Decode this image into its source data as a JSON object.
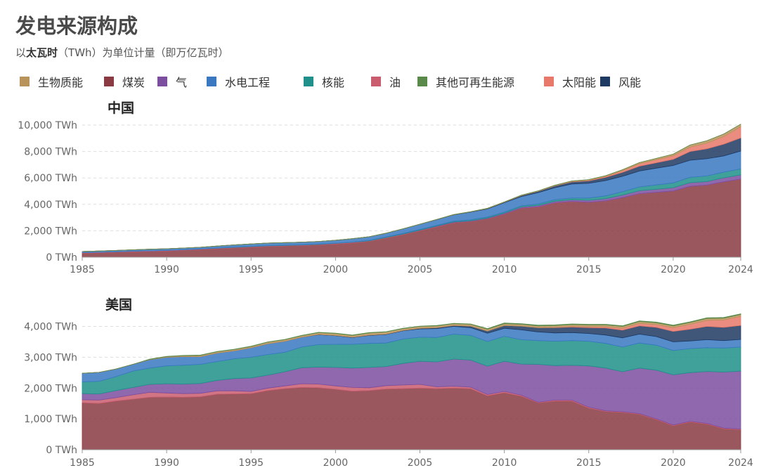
{
  "title": "发电来源构成",
  "subtitle_prefix": "以",
  "subtitle_bold": "太瓦时",
  "subtitle_rest": "（TWh）为单位计量（即万亿瓦时）",
  "legend": [
    {
      "key": "biomass",
      "label": "生物质能",
      "color": "#b8935a"
    },
    {
      "key": "coal",
      "label": "煤炭",
      "color": "#8a3a42"
    },
    {
      "key": "gas",
      "label": "气",
      "color": "#7b4ea0"
    },
    {
      "key": "hydro",
      "label": "水电工程",
      "color": "#3a78c2"
    },
    {
      "key": "nuclear",
      "label": "核能",
      "color": "#1f918a"
    },
    {
      "key": "oil",
      "label": "油",
      "color": "#c95d6f"
    },
    {
      "key": "other",
      "label": "其他可再生能源",
      "color": "#5a8a4a"
    },
    {
      "key": "solar",
      "label": "太阳能",
      "color": "#e8786a"
    },
    {
      "key": "wind",
      "label": "风能",
      "color": "#1e3a63"
    }
  ],
  "chart_data": [
    {
      "type": "area",
      "stacked": true,
      "title": "中国",
      "x": [
        1985,
        1986,
        1987,
        1988,
        1989,
        1990,
        1991,
        1992,
        1993,
        1994,
        1995,
        1996,
        1997,
        1998,
        1999,
        2000,
        2001,
        2002,
        2003,
        2004,
        2005,
        2006,
        2007,
        2008,
        2009,
        2010,
        2011,
        2012,
        2013,
        2014,
        2015,
        2016,
        2017,
        2018,
        2019,
        2020,
        2021,
        2022,
        2023,
        2024
      ],
      "ylim": [
        0,
        10000
      ],
      "yticks": [
        0,
        2000,
        4000,
        6000,
        8000,
        10000
      ],
      "ytick_labels": [
        "0 TWh",
        "2,000 TWh",
        "4,000 TWh",
        "6,000 TWh",
        "8,000 TWh",
        "10,000 TWh"
      ],
      "xticks": [
        1985,
        1990,
        1995,
        2000,
        2005,
        2010,
        2015,
        2020,
        2024
      ],
      "series": [
        {
          "name": "煤炭",
          "key": "coal",
          "values": [
            300,
            330,
            370,
            410,
            440,
            470,
            520,
            580,
            640,
            700,
            760,
            820,
            850,
            880,
            930,
            1000,
            1080,
            1200,
            1450,
            1700,
            2000,
            2300,
            2600,
            2700,
            2900,
            3250,
            3700,
            3800,
            4100,
            4200,
            4150,
            4250,
            4500,
            4800,
            4900,
            5000,
            5350,
            5450,
            5700,
            5900
          ]
        },
        {
          "name": "油",
          "key": "oil",
          "values": [
            40,
            40,
            40,
            40,
            40,
            40,
            40,
            40,
            40,
            40,
            40,
            40,
            40,
            40,
            40,
            40,
            40,
            40,
            40,
            40,
            30,
            30,
            30,
            20,
            20,
            20,
            20,
            20,
            20,
            20,
            10,
            10,
            10,
            10,
            10,
            10,
            10,
            10,
            10,
            10
          ]
        },
        {
          "name": "气",
          "key": "gas",
          "values": [
            0,
            0,
            0,
            0,
            0,
            0,
            0,
            0,
            0,
            0,
            0,
            0,
            0,
            0,
            0,
            0,
            0,
            0,
            0,
            10,
            20,
            30,
            40,
            40,
            50,
            70,
            90,
            100,
            120,
            130,
            150,
            170,
            200,
            220,
            230,
            250,
            280,
            270,
            300,
            320
          ]
        },
        {
          "name": "核能",
          "key": "nuclear",
          "values": [
            0,
            0,
            0,
            0,
            0,
            0,
            0,
            0,
            10,
            20,
            20,
            20,
            20,
            20,
            20,
            20,
            20,
            30,
            40,
            50,
            50,
            50,
            60,
            70,
            70,
            70,
            80,
            100,
            110,
            130,
            170,
            210,
            250,
            290,
            330,
            360,
            400,
            420,
            430,
            450
          ]
        },
        {
          "name": "水电工程",
          "key": "hydro",
          "values": [
            90,
            100,
            100,
            110,
            120,
            130,
            130,
            130,
            150,
            170,
            180,
            190,
            190,
            200,
            200,
            220,
            260,
            280,
            290,
            350,
            400,
            430,
            480,
            580,
            610,
            710,
            700,
            870,
            910,
            1060,
            1110,
            1160,
            1160,
            1200,
            1270,
            1320,
            1300,
            1300,
            1230,
            1350
          ]
        },
        {
          "name": "风能",
          "key": "wind",
          "values": [
            0,
            0,
            0,
            0,
            0,
            0,
            0,
            0,
            0,
            0,
            0,
            0,
            0,
            0,
            0,
            0,
            0,
            0,
            0,
            0,
            0,
            10,
            10,
            20,
            30,
            40,
            70,
            100,
            140,
            160,
            190,
            240,
            300,
            370,
            410,
            470,
            660,
            760,
            890,
            1000
          ]
        },
        {
          "name": "太阳能",
          "key": "solar",
          "values": [
            0,
            0,
            0,
            0,
            0,
            0,
            0,
            0,
            0,
            0,
            0,
            0,
            0,
            0,
            0,
            0,
            0,
            0,
            0,
            0,
            0,
            0,
            0,
            0,
            0,
            0,
            0,
            0,
            10,
            30,
            40,
            70,
            120,
            180,
            220,
            260,
            330,
            430,
            580,
            840
          ]
        },
        {
          "name": "生物质能",
          "key": "biomass",
          "values": [
            0,
            0,
            0,
            0,
            0,
            0,
            0,
            0,
            0,
            0,
            0,
            0,
            0,
            0,
            0,
            0,
            0,
            0,
            0,
            0,
            0,
            10,
            10,
            10,
            20,
            20,
            30,
            30,
            40,
            40,
            50,
            60,
            80,
            90,
            110,
            130,
            160,
            180,
            190,
            200
          ]
        },
        {
          "name": "其他可再生能源",
          "key": "other",
          "values": [
            0,
            0,
            0,
            0,
            0,
            0,
            0,
            0,
            0,
            0,
            0,
            0,
            0,
            0,
            0,
            0,
            0,
            0,
            0,
            0,
            0,
            0,
            0,
            0,
            0,
            0,
            0,
            0,
            0,
            0,
            0,
            0,
            0,
            0,
            0,
            0,
            0,
            0,
            0,
            0
          ]
        }
      ]
    },
    {
      "type": "area",
      "stacked": true,
      "title": "美国",
      "x": [
        1985,
        1986,
        1987,
        1988,
        1989,
        1990,
        1991,
        1992,
        1993,
        1994,
        1995,
        1996,
        1997,
        1998,
        1999,
        2000,
        2001,
        2002,
        2003,
        2004,
        2005,
        2006,
        2007,
        2008,
        2009,
        2010,
        2011,
        2012,
        2013,
        2014,
        2015,
        2016,
        2017,
        2018,
        2019,
        2020,
        2021,
        2022,
        2023,
        2024
      ],
      "ylim": [
        0,
        4400
      ],
      "yticks": [
        0,
        1000,
        2000,
        3000,
        4000
      ],
      "ytick_labels": [
        "0 TWh",
        "1,000 TWh",
        "2,000 TWh",
        "3,000 TWh",
        "4,000 TWh"
      ],
      "xticks": [
        1985,
        1990,
        1995,
        2000,
        2005,
        2010,
        2015,
        2020,
        2024
      ],
      "series": [
        {
          "name": "煤炭",
          "key": "coal",
          "values": [
            1520,
            1500,
            1580,
            1640,
            1700,
            1710,
            1700,
            1720,
            1800,
            1810,
            1820,
            1920,
            1980,
            2020,
            2010,
            1960,
            1900,
            1920,
            1970,
            1980,
            2000,
            1980,
            2000,
            1980,
            1750,
            1850,
            1740,
            1520,
            1580,
            1580,
            1350,
            1240,
            1210,
            1150,
            980,
            780,
            900,
            830,
            680,
            650
          ]
        },
        {
          "name": "油",
          "key": "oil",
          "values": [
            100,
            110,
            110,
            140,
            160,
            130,
            120,
            110,
            110,
            100,
            70,
            80,
            90,
            120,
            120,
            110,
            120,
            90,
            110,
            120,
            120,
            60,
            60,
            50,
            40,
            40,
            30,
            20,
            30,
            30,
            30,
            20,
            20,
            20,
            20,
            20,
            20,
            20,
            20,
            20
          ]
        },
        {
          "name": "气",
          "key": "gas",
          "values": [
            200,
            200,
            230,
            240,
            260,
            300,
            310,
            320,
            340,
            400,
            440,
            420,
            460,
            520,
            550,
            600,
            630,
            660,
            620,
            700,
            750,
            810,
            880,
            880,
            920,
            980,
            1010,
            1230,
            1120,
            1130,
            1340,
            1390,
            1300,
            1480,
            1580,
            1630,
            1580,
            1690,
            1820,
            1880
          ]
        },
        {
          "name": "核能",
          "key": "nuclear",
          "values": [
            380,
            410,
            450,
            530,
            530,
            580,
            610,
            620,
            610,
            640,
            670,
            670,
            630,
            670,
            730,
            750,
            770,
            780,
            760,
            790,
            780,
            790,
            810,
            800,
            800,
            810,
            790,
            770,
            790,
            800,
            800,
            800,
            800,
            810,
            810,
            790,
            780,
            770,
            780,
            780
          ]
        },
        {
          "name": "水电工程",
          "key": "hydro",
          "values": [
            280,
            290,
            250,
            220,
            270,
            280,
            280,
            250,
            280,
            260,
            310,
            350,
            360,
            320,
            320,
            280,
            220,
            260,
            280,
            270,
            270,
            290,
            250,
            250,
            270,
            260,
            320,
            280,
            270,
            260,
            250,
            270,
            300,
            290,
            280,
            280,
            250,
            260,
            240,
            250
          ]
        },
        {
          "name": "风能",
          "key": "wind",
          "values": [
            0,
            0,
            0,
            0,
            0,
            0,
            0,
            0,
            0,
            0,
            0,
            0,
            0,
            0,
            10,
            10,
            10,
            10,
            10,
            10,
            20,
            30,
            30,
            50,
            70,
            90,
            120,
            140,
            170,
            180,
            190,
            230,
            250,
            270,
            300,
            340,
            380,
            430,
            430,
            450
          ]
        },
        {
          "name": "太阳能",
          "key": "solar",
          "values": [
            0,
            0,
            0,
            0,
            0,
            0,
            0,
            0,
            0,
            0,
            0,
            0,
            0,
            0,
            0,
            0,
            0,
            0,
            0,
            0,
            0,
            0,
            0,
            0,
            0,
            0,
            0,
            0,
            10,
            20,
            30,
            40,
            60,
            80,
            90,
            120,
            160,
            200,
            240,
            300
          ]
        },
        {
          "name": "生物质能",
          "key": "biomass",
          "values": [
            0,
            0,
            0,
            0,
            10,
            20,
            30,
            40,
            40,
            40,
            40,
            50,
            50,
            50,
            60,
            60,
            60,
            70,
            70,
            60,
            60,
            60,
            60,
            60,
            60,
            60,
            60,
            60,
            60,
            60,
            60,
            60,
            60,
            60,
            60,
            60,
            60,
            60,
            60,
            60
          ]
        },
        {
          "name": "其他可再生能源",
          "key": "other",
          "values": [
            0,
            0,
            0,
            0,
            10,
            10,
            10,
            10,
            10,
            10,
            10,
            10,
            10,
            10,
            10,
            10,
            10,
            10,
            10,
            10,
            10,
            10,
            10,
            10,
            20,
            20,
            20,
            20,
            20,
            20,
            20,
            20,
            20,
            20,
            20,
            20,
            20,
            20,
            20,
            20
          ]
        }
      ]
    }
  ]
}
